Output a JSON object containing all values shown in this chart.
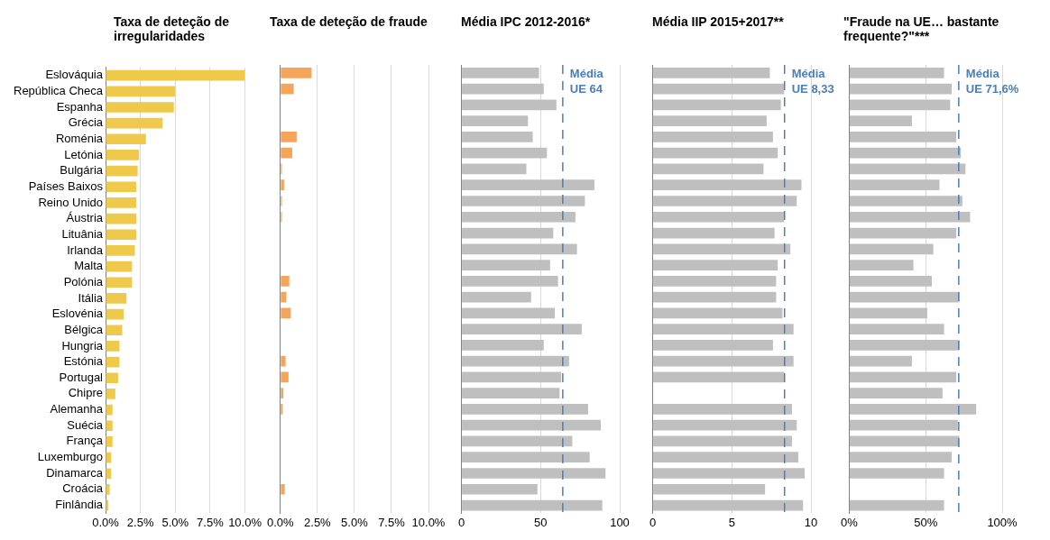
{
  "chart_data": [
    {
      "type": "bar",
      "orientation": "horizontal",
      "title": "Taxa de deteção de irregularidades",
      "categories": [
        "Eslováquia",
        "República Checa",
        "Espanha",
        "Grécia",
        "Roménia",
        "Letónia",
        "Bulgária",
        "Países Baixos",
        "Reino Unido",
        "Áustria",
        "Lituânia",
        "Irlanda",
        "Malta",
        "Polónia",
        "Itália",
        "Eslovénia",
        "Bélgica",
        "Hungria",
        "Estónia",
        "Portugal",
        "Chipre",
        "Alemanha",
        "Suécia",
        "França",
        "Luxemburgo",
        "Dinamarca",
        "Croácia",
        "Finlândia"
      ],
      "values": [
        10.0,
        5.0,
        4.9,
        4.1,
        2.9,
        2.4,
        2.3,
        2.2,
        2.2,
        2.2,
        2.2,
        2.1,
        1.9,
        1.9,
        1.5,
        1.3,
        1.2,
        1.0,
        1.0,
        0.9,
        0.7,
        0.5,
        0.5,
        0.5,
        0.4,
        0.4,
        0.3,
        0.2
      ],
      "color": "#efc94c",
      "xlim": [
        0,
        10
      ],
      "xticks": [
        {
          "value": 0,
          "label": "0.0%"
        },
        {
          "value": 2.5,
          "label": "2.5%"
        },
        {
          "value": 5,
          "label": "5.0%"
        },
        {
          "value": 7.5,
          "label": "7.5%"
        },
        {
          "value": 10,
          "label": "10.0%"
        }
      ],
      "grid": "x"
    },
    {
      "type": "bar",
      "orientation": "horizontal",
      "title": "Taxa de deteção de fraude",
      "categories": [
        null,
        null,
        null,
        null,
        null,
        null,
        null,
        null,
        null,
        null,
        null,
        null,
        null,
        null,
        null,
        null,
        null,
        null,
        null,
        null,
        null,
        null,
        null,
        null,
        null,
        null,
        null,
        null
      ],
      "values": [
        2.1,
        0.9,
        null,
        null,
        1.1,
        0.8,
        0.1,
        0.25,
        0.1,
        0.1,
        0,
        0,
        null,
        0.6,
        0.4,
        0.7,
        0,
        null,
        0.35,
        0.55,
        0.2,
        0.15,
        0,
        0,
        0,
        null,
        0.3,
        0
      ],
      "color": "#f5a55a",
      "xlim": [
        0,
        10
      ],
      "xticks": [
        {
          "value": 0,
          "label": "0.0%"
        },
        {
          "value": 2.5,
          "label": "2.5%"
        },
        {
          "value": 5,
          "label": "5.0%"
        },
        {
          "value": 7.5,
          "label": "7.5%"
        },
        {
          "value": 10,
          "label": "10.0%"
        }
      ],
      "grid": "x",
      "tick_labels": "x"
    },
    {
      "type": "bar",
      "orientation": "horizontal",
      "title": "Média IPC 2012-2016*",
      "categories": [
        null,
        null,
        null,
        null,
        null,
        null,
        null,
        null,
        null,
        null,
        null,
        null,
        null,
        null,
        null,
        null,
        null,
        null,
        null,
        null,
        null,
        null,
        null,
        null,
        null,
        null,
        null,
        null
      ],
      "values": [
        49,
        52,
        60,
        42,
        45,
        54,
        41,
        84,
        78,
        72,
        58,
        73,
        56,
        61,
        44,
        59,
        76,
        52,
        68,
        63,
        62,
        80,
        88,
        70,
        81,
        91,
        48,
        89
      ],
      "color": "#bfbfbf",
      "xlim": [
        0,
        100
      ],
      "xticks": [
        0,
        50,
        100
      ],
      "grid": "x",
      "tick_labels": "x",
      "ref_lines": [
        {
          "axis": "x",
          "value": 64,
          "label": "Média UE 64",
          "color": "#4a7ebb",
          "line_style": "dashed"
        }
      ]
    },
    {
      "type": "bar",
      "orientation": "horizontal",
      "title": "Média IIP 2015+2017**",
      "categories": [
        null,
        null,
        null,
        null,
        null,
        null,
        null,
        null,
        null,
        null,
        null,
        null,
        null,
        null,
        null,
        null,
        null,
        null,
        null,
        null,
        null,
        null,
        null,
        null,
        null,
        null,
        null,
        null
      ],
      "values": [
        7.4,
        8.3,
        8.1,
        7.2,
        7.6,
        7.9,
        7.0,
        9.4,
        9.1,
        8.3,
        7.7,
        8.7,
        7.9,
        7.8,
        7.8,
        8.2,
        8.9,
        7.6,
        8.9,
        8.3,
        null,
        8.8,
        9.1,
        8.8,
        9.2,
        9.6,
        7.1,
        9.5
      ],
      "color": "#bfbfbf",
      "xlim": [
        0,
        10
      ],
      "xticks": [
        0,
        5,
        10
      ],
      "grid": "x",
      "tick_labels": "x",
      "ref_lines": [
        {
          "axis": "x",
          "value": 8.33,
          "label": "Média UE 8,33",
          "color": "#4a7ebb",
          "line_style": "dashed"
        }
      ]
    },
    {
      "type": "bar",
      "orientation": "horizontal",
      "title": "\"Fraude na UE… bastante frequente?\"***",
      "categories": [
        null,
        null,
        null,
        null,
        null,
        null,
        null,
        null,
        null,
        null,
        null,
        null,
        null,
        null,
        null,
        null,
        null,
        null,
        null,
        null,
        null,
        null,
        null,
        null,
        null,
        null,
        null,
        null
      ],
      "values": [
        62,
        67,
        66,
        41,
        70,
        73,
        76,
        59,
        74,
        79,
        70,
        55,
        42,
        54,
        72,
        51,
        62,
        72,
        41,
        70,
        61,
        83,
        71,
        72,
        67,
        62,
        null,
        62
      ],
      "color": "#bfbfbf",
      "xlim": [
        0,
        100
      ],
      "xticks": [
        {
          "value": 0,
          "label": "0%"
        },
        {
          "value": 50,
          "label": "50%"
        },
        {
          "value": 100,
          "label": "100%"
        }
      ],
      "grid": "x",
      "tick_labels": "x",
      "ref_lines": [
        {
          "axis": "x",
          "value": 71.6,
          "label": "Média UE 71,6%",
          "color": "#4a7ebb",
          "line_style": "dashed"
        }
      ]
    }
  ]
}
